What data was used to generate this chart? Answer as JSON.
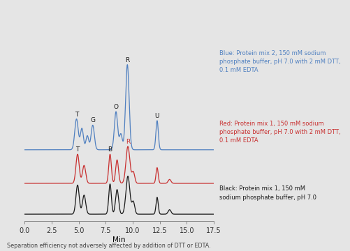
{
  "background_color": "#e5e5e5",
  "plot_bg_color": "#e5e5e5",
  "xmin": 0.0,
  "xmax": 17.5,
  "xlabel": "Min",
  "xlabel_fontsize": 7.5,
  "xticks": [
    0.0,
    2.5,
    5.0,
    7.5,
    10.0,
    12.5,
    15.0,
    17.5
  ],
  "xtick_labels": [
    "0.0",
    "2.5",
    "5.0",
    "7.5",
    "10.0",
    "12.5",
    "15.0",
    "17.5"
  ],
  "footnote": "Separation efficiency not adversely affected by addition of DTT or EDTA.",
  "footnote_fontsize": 5.8,
  "legend_blue": "Blue: Protein mix 2, 150 mM sodium\nphosphate buffer, pH 7.0 with 2 mM DTT,\n0.1 mM EDTA",
  "legend_red": "Red: Protein mix 1, 150 mM sodium\nphosphate buffer, pH 7.0 with 2 mM DTT,\n0.1 mM EDTA",
  "legend_black": "Black: Protein mix 1, 150 mM\nsodium phosphate buffer, pH 7.0",
  "legend_fontsize": 6.0,
  "blue_color": "#5080c0",
  "red_color": "#c83030",
  "black_color": "#1a1a1a",
  "tick_fontsize": 7.0,
  "ymax": 3.6,
  "black_base": 0.0,
  "red_base": 0.55,
  "blue_base": 1.15
}
